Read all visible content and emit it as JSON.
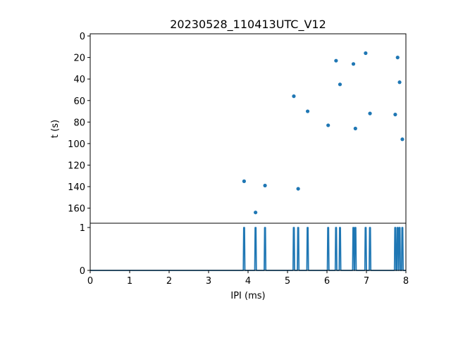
{
  "colors": {
    "series": "#1f77b4",
    "axes": "#000000",
    "background": "#ffffff"
  },
  "chart_data": [
    {
      "type": "scatter",
      "title": "20230528_110413UTC_V12",
      "xlabel": "",
      "ylabel": "t (s)",
      "xlim": [
        0,
        8
      ],
      "ylim": [
        174,
        -2
      ],
      "y_inverted": true,
      "grid": false,
      "y_ticks": [
        "0",
        "20",
        "40",
        "60",
        "80",
        "100",
        "120",
        "140",
        "160"
      ],
      "points": [
        {
          "x": 3.9,
          "y": 135
        },
        {
          "x": 4.19,
          "y": 164
        },
        {
          "x": 4.43,
          "y": 139
        },
        {
          "x": 5.16,
          "y": 56
        },
        {
          "x": 5.27,
          "y": 142
        },
        {
          "x": 5.51,
          "y": 70
        },
        {
          "x": 6.03,
          "y": 83
        },
        {
          "x": 6.23,
          "y": 23
        },
        {
          "x": 6.33,
          "y": 45
        },
        {
          "x": 6.67,
          "y": 26
        },
        {
          "x": 6.72,
          "y": 86
        },
        {
          "x": 6.98,
          "y": 16
        },
        {
          "x": 7.09,
          "y": 72
        },
        {
          "x": 7.73,
          "y": 73
        },
        {
          "x": 7.79,
          "y": 20
        },
        {
          "x": 7.84,
          "y": 43
        },
        {
          "x": 7.91,
          "y": 96
        }
      ]
    },
    {
      "type": "line",
      "title": "",
      "xlabel": "IPI (ms)",
      "ylabel": "",
      "xlim": [
        0,
        8
      ],
      "ylim": [
        0,
        1.1
      ],
      "grid": false,
      "x_ticks": [
        "0",
        "1",
        "2",
        "3",
        "4",
        "5",
        "6",
        "7",
        "8"
      ],
      "y_ticks": [
        "0",
        "1"
      ],
      "spike_positions": [
        3.9,
        4.19,
        4.43,
        5.16,
        5.27,
        5.51,
        6.03,
        6.23,
        6.33,
        6.67,
        6.72,
        6.98,
        7.09,
        7.73,
        7.79,
        7.84,
        7.91
      ],
      "spike_value": 1
    }
  ]
}
